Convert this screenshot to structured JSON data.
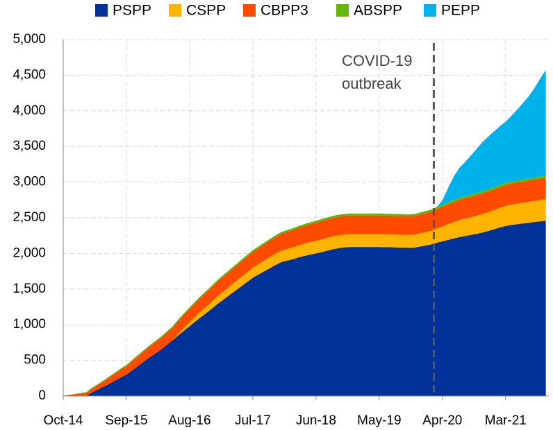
{
  "chart_data": {
    "type": "stacked_area",
    "annotation": [
      "COVID-19",
      "outbreak"
    ],
    "categories": [
      "Oct-14",
      null,
      null,
      null,
      null,
      null,
      null,
      null,
      null,
      null,
      null,
      "Sep-15",
      null,
      null,
      null,
      null,
      null,
      null,
      null,
      null,
      null,
      null,
      "Aug-16",
      null,
      null,
      null,
      null,
      null,
      null,
      null,
      null,
      null,
      null,
      "Jul-17",
      null,
      null,
      null,
      null,
      null,
      null,
      null,
      null,
      null,
      null,
      "Jun-18",
      null,
      null,
      null,
      null,
      null,
      null,
      null,
      null,
      null,
      null,
      "May-19",
      null,
      null,
      null,
      null,
      null,
      null,
      null,
      null,
      null,
      null,
      "Apr-20",
      null,
      null,
      null,
      null,
      null,
      null,
      null,
      null,
      null,
      null,
      "Mar-21",
      null,
      null,
      null,
      null,
      null,
      null,
      null
    ],
    "series": [
      {
        "name": "PSPP",
        "color": "#003299",
        "values": [
          0,
          0,
          0,
          0,
          0,
          50,
          90,
          130,
          170,
          215,
          260,
          300,
          360,
          420,
          480,
          540,
          595,
          650,
          715,
          780,
          850,
          915,
          980,
          1045,
          1110,
          1170,
          1235,
          1300,
          1360,
          1420,
          1480,
          1540,
          1600,
          1660,
          1705,
          1750,
          1795,
          1840,
          1880,
          1900,
          1920,
          1945,
          1965,
          1985,
          2000,
          2020,
          2040,
          2060,
          2075,
          2085,
          2090,
          2090,
          2090,
          2090,
          2090,
          2090,
          2088,
          2086,
          2084,
          2082,
          2080,
          2080,
          2095,
          2110,
          2125,
          2150,
          2170,
          2190,
          2210,
          2230,
          2245,
          2260,
          2275,
          2295,
          2315,
          2340,
          2365,
          2385,
          2400,
          2410,
          2420,
          2430,
          2440,
          2450,
          2460
        ]
      },
      {
        "name": "CSPP",
        "color": "#ffb400",
        "values": [
          0,
          0,
          0,
          0,
          0,
          0,
          0,
          0,
          0,
          0,
          0,
          0,
          0,
          0,
          0,
          0,
          0,
          0,
          0,
          0,
          20,
          40,
          55,
          70,
          80,
          90,
          100,
          110,
          115,
          120,
          125,
          130,
          135,
          140,
          145,
          150,
          155,
          158,
          160,
          163,
          166,
          169,
          172,
          175,
          177,
          179,
          180,
          180,
          180,
          180,
          180,
          180,
          180,
          180,
          180,
          180,
          180,
          180,
          180,
          180,
          180,
          182,
          185,
          188,
          192,
          200,
          210,
          220,
          230,
          240,
          245,
          250,
          255,
          260,
          265,
          270,
          275,
          280,
          285,
          288,
          291,
          294,
          297,
          300,
          302
        ]
      },
      {
        "name": "CBPP3",
        "color": "#ff4b00",
        "values": [
          5,
          15,
          25,
          35,
          45,
          55,
          65,
          75,
          90,
          100,
          110,
          120,
          130,
          138,
          145,
          152,
          158,
          164,
          170,
          175,
          180,
          184,
          188,
          192,
          196,
          200,
          203,
          206,
          209,
          212,
          215,
          218,
          220,
          222,
          225,
          228,
          231,
          234,
          237,
          240,
          243,
          246,
          249,
          252,
          255,
          257,
          259,
          261,
          262,
          262,
          262,
          262,
          262,
          262,
          262,
          262,
          262,
          262,
          262,
          262,
          262,
          262,
          264,
          266,
          268,
          272,
          276,
          280,
          283,
          285,
          287,
          288,
          289,
          290,
          291,
          292,
          293,
          294,
          295,
          296,
          297,
          298,
          299,
          300,
          300
        ]
      },
      {
        "name": "ABSPP",
        "color": "#65b800",
        "values": [
          0,
          2,
          4,
          6,
          8,
          10,
          12,
          13,
          14,
          15,
          15,
          16,
          16,
          17,
          17,
          18,
          18,
          19,
          19,
          20,
          20,
          21,
          21,
          21,
          22,
          22,
          22,
          22,
          23,
          23,
          23,
          23,
          24,
          24,
          24,
          24,
          25,
          25,
          25,
          25,
          26,
          26,
          26,
          26,
          26,
          27,
          27,
          27,
          27,
          27,
          27,
          27,
          27,
          27,
          27,
          27,
          27,
          27,
          27,
          27,
          27,
          27,
          28,
          28,
          28,
          29,
          29,
          29,
          29,
          30,
          30,
          30,
          30,
          30,
          30,
          30,
          30,
          30,
          30,
          30,
          30,
          30,
          30,
          30,
          30
        ]
      },
      {
        "name": "PEPP",
        "color": "#00b1ea",
        "values": [
          0,
          0,
          0,
          0,
          0,
          0,
          0,
          0,
          0,
          0,
          0,
          0,
          0,
          0,
          0,
          0,
          0,
          0,
          0,
          0,
          0,
          0,
          0,
          0,
          0,
          0,
          0,
          0,
          0,
          0,
          0,
          0,
          0,
          0,
          0,
          0,
          0,
          0,
          0,
          0,
          0,
          0,
          0,
          0,
          0,
          0,
          0,
          0,
          0,
          0,
          0,
          0,
          0,
          0,
          0,
          0,
          0,
          0,
          0,
          0,
          0,
          0,
          0,
          0,
          0,
          0,
          60,
          200,
          330,
          420,
          480,
          550,
          620,
          690,
          740,
          780,
          820,
          860,
          920,
          990,
          1070,
          1150,
          1250,
          1370,
          1480
        ]
      }
    ],
    "ylim": [
      0,
      5000
    ],
    "yticks": [
      0,
      500,
      {
        "value": 1000,
        "label": "1,000"
      },
      {
        "value": 1500,
        "label": "1,500"
      },
      {
        "value": 2000,
        "label": "2,000"
      },
      {
        "value": 2500,
        "label": "2,500"
      },
      {
        "value": 3000,
        "label": "3,000"
      },
      {
        "value": 3500,
        "label": "3,500"
      },
      {
        "value": 4000,
        "label": "4,000"
      },
      {
        "value": 4500,
        "label": "4,500"
      },
      {
        "value": 5000,
        "label": "5,000"
      }
    ],
    "grid": true,
    "legend": "top"
  }
}
